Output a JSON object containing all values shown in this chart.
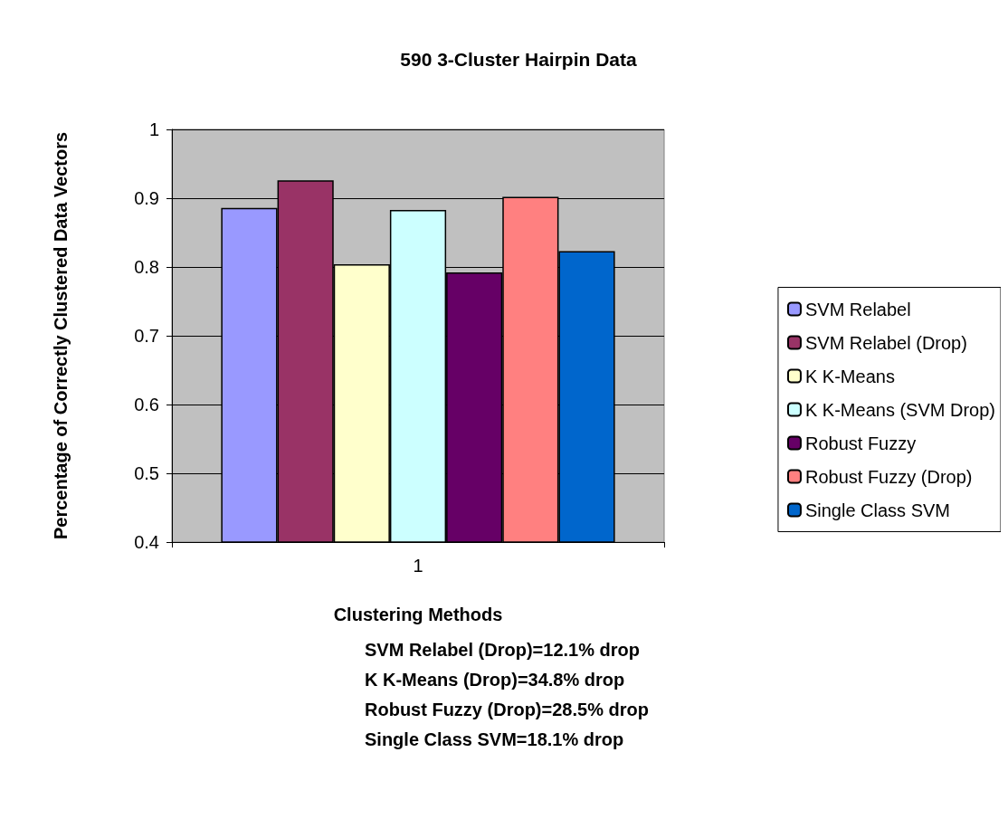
{
  "chart_data": {
    "type": "bar",
    "title": "590 3-Cluster Hairpin Data",
    "xlabel": "Clustering Methods",
    "ylabel": "Percentage of Correctly Clustered Data Vectors",
    "annotations": [
      "SVM Relabel (Drop)=12.1% drop",
      "K K-Means (Drop)=34.8% drop",
      "Robust Fuzzy (Drop)=28.5% drop",
      "Single Class SVM=18.1% drop"
    ],
    "categories": [
      "1"
    ],
    "series": [
      {
        "name": "SVM Relabel",
        "color": "#9999ff",
        "values": [
          0.886
        ]
      },
      {
        "name": "SVM Relabel (Drop)",
        "color": "#993366",
        "values": [
          0.926
        ]
      },
      {
        "name": "K K-Means",
        "color": "#ffffcc",
        "values": [
          0.804
        ]
      },
      {
        "name": "K K-Means (SVM Drop)",
        "color": "#ccffff",
        "values": [
          0.883
        ]
      },
      {
        "name": "Robust Fuzzy",
        "color": "#660066",
        "values": [
          0.792
        ]
      },
      {
        "name": "Robust Fuzzy (Drop)",
        "color": "#ff8080",
        "values": [
          0.902
        ]
      },
      {
        "name": "Single Class SVM",
        "color": "#0066cc",
        "values": [
          0.823
        ]
      }
    ],
    "ylim": [
      0.4,
      1
    ],
    "yticks": [
      0.4,
      0.5,
      0.6,
      0.7,
      0.8,
      0.9,
      1
    ],
    "grid": "y",
    "legend": "right"
  }
}
